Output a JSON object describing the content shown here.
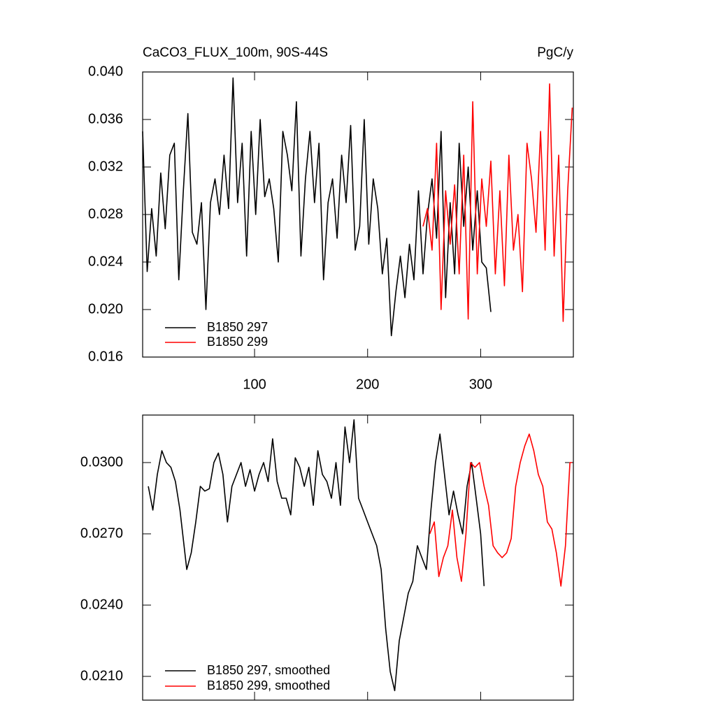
{
  "chart_data": [
    {
      "type": "line",
      "title": "CaCO3_FLUX_100m, 90S-44S",
      "units": "PgC/y",
      "xlim": [
        1,
        382
      ],
      "xticks": [
        100,
        200,
        300
      ],
      "show_xtick_labels": true,
      "ylim": [
        0.016,
        0.04
      ],
      "yticks": [
        {
          "value": 0.016,
          "label": "0.016"
        },
        {
          "value": 0.02,
          "label": "0.020"
        },
        {
          "value": 0.024,
          "label": "0.024"
        },
        {
          "value": 0.028,
          "label": "0.028"
        },
        {
          "value": 0.032,
          "label": "0.032"
        },
        {
          "value": 0.036,
          "label": "0.036"
        },
        {
          "value": 0.04,
          "label": "0.040"
        }
      ],
      "series": [
        {
          "name": "B1850 297",
          "color": "#000000",
          "x": [
            1,
            5,
            9,
            13,
            17,
            21,
            25,
            29,
            33,
            37,
            41,
            45,
            49,
            53,
            57,
            61,
            65,
            69,
            73,
            77,
            81,
            85,
            89,
            93,
            97,
            101,
            105,
            109,
            113,
            117,
            121,
            125,
            129,
            133,
            137,
            141,
            145,
            149,
            153,
            157,
            161,
            165,
            169,
            173,
            177,
            181,
            185,
            189,
            193,
            197,
            201,
            205,
            209,
            213,
            217,
            221,
            225,
            229,
            233,
            237,
            241,
            245,
            249,
            253,
            257,
            261,
            265,
            269,
            273,
            277,
            281,
            285,
            289,
            293,
            297,
            301,
            305,
            309
          ],
          "values": [
            0.035,
            0.0232,
            0.0285,
            0.0245,
            0.0315,
            0.0268,
            0.033,
            0.034,
            0.0225,
            0.03,
            0.0365,
            0.0265,
            0.0255,
            0.029,
            0.02,
            0.029,
            0.031,
            0.028,
            0.033,
            0.0285,
            0.0395,
            0.029,
            0.034,
            0.0245,
            0.035,
            0.028,
            0.036,
            0.0295,
            0.031,
            0.0285,
            0.024,
            0.035,
            0.033,
            0.03,
            0.0375,
            0.0245,
            0.031,
            0.035,
            0.029,
            0.034,
            0.0225,
            0.029,
            0.031,
            0.026,
            0.033,
            0.029,
            0.0355,
            0.025,
            0.027,
            0.036,
            0.0255,
            0.031,
            0.0285,
            0.023,
            0.026,
            0.0178,
            0.0215,
            0.0245,
            0.021,
            0.0255,
            0.0225,
            0.03,
            0.023,
            0.028,
            0.031,
            0.026,
            0.035,
            0.021,
            0.029,
            0.023,
            0.034,
            0.027,
            0.032,
            0.025,
            0.03,
            0.024,
            0.0235,
            0.0198
          ]
        },
        {
          "name": "B1850 299",
          "color": "#ff0000",
          "x": [
            249,
            253,
            257,
            261,
            265,
            269,
            273,
            277,
            281,
            285,
            289,
            293,
            297,
            301,
            305,
            309,
            313,
            317,
            321,
            325,
            329,
            333,
            337,
            341,
            345,
            349,
            353,
            357,
            361,
            365,
            369,
            373,
            377,
            381
          ],
          "values": [
            0.027,
            0.0285,
            0.025,
            0.034,
            0.02,
            0.03,
            0.0255,
            0.0305,
            0.023,
            0.033,
            0.0192,
            0.0375,
            0.023,
            0.031,
            0.027,
            0.0325,
            0.023,
            0.03,
            0.022,
            0.033,
            0.025,
            0.028,
            0.0215,
            0.034,
            0.031,
            0.0265,
            0.035,
            0.025,
            0.039,
            0.0245,
            0.033,
            0.019,
            0.03,
            0.037
          ]
        }
      ]
    },
    {
      "type": "line",
      "xlim": [
        1,
        382
      ],
      "xticks": [
        100,
        200,
        300
      ],
      "show_xtick_labels": false,
      "ylim": [
        0.02,
        0.032
      ],
      "yticks": [
        {
          "value": 0.021,
          "label": "0.0210"
        },
        {
          "value": 0.024,
          "label": "0.0240"
        },
        {
          "value": 0.027,
          "label": "0.0270"
        },
        {
          "value": 0.03,
          "label": "0.0300"
        }
      ],
      "series": [
        {
          "name": "B1850 297, smoothed",
          "color": "#000000",
          "x": [
            6,
            10,
            14,
            18,
            22,
            26,
            30,
            34,
            40,
            44,
            48,
            52,
            56,
            60,
            64,
            68,
            72,
            76,
            80,
            84,
            88,
            92,
            96,
            100,
            104,
            108,
            112,
            116,
            120,
            124,
            128,
            132,
            136,
            140,
            144,
            148,
            152,
            156,
            160,
            164,
            168,
            172,
            176,
            180,
            184,
            188,
            192,
            196,
            200,
            204,
            208,
            212,
            216,
            220,
            224,
            228,
            232,
            236,
            240,
            244,
            248,
            252,
            256,
            260,
            264,
            268,
            272,
            276,
            280,
            284,
            288,
            292,
            296,
            300,
            303
          ],
          "values": [
            0.029,
            0.028,
            0.0295,
            0.0305,
            0.03,
            0.0298,
            0.0292,
            0.028,
            0.0255,
            0.0262,
            0.0275,
            0.029,
            0.0288,
            0.0289,
            0.03,
            0.0304,
            0.0295,
            0.0275,
            0.029,
            0.0295,
            0.03,
            0.029,
            0.0297,
            0.0288,
            0.0295,
            0.03,
            0.0292,
            0.031,
            0.0292,
            0.0285,
            0.0285,
            0.0278,
            0.0302,
            0.0298,
            0.029,
            0.0298,
            0.0282,
            0.0305,
            0.0295,
            0.0292,
            0.0285,
            0.03,
            0.0282,
            0.0315,
            0.03,
            0.0318,
            0.0285,
            0.028,
            0.0275,
            0.027,
            0.0265,
            0.0255,
            0.023,
            0.0212,
            0.0204,
            0.0225,
            0.0235,
            0.0245,
            0.025,
            0.0265,
            0.026,
            0.0255,
            0.028,
            0.03,
            0.0312,
            0.0295,
            0.0278,
            0.0288,
            0.0278,
            0.027,
            0.029,
            0.03,
            0.0285,
            0.027,
            0.0248
          ]
        },
        {
          "name": "B1850 299, smoothed",
          "color": "#ff0000",
          "x": [
            255,
            259,
            263,
            267,
            271,
            275,
            279,
            283,
            287,
            291,
            295,
            299,
            303,
            307,
            311,
            315,
            319,
            323,
            327,
            331,
            335,
            339,
            343,
            347,
            351,
            355,
            359,
            363,
            367,
            371,
            375,
            379,
            381
          ],
          "values": [
            0.027,
            0.0275,
            0.0252,
            0.026,
            0.0265,
            0.028,
            0.026,
            0.025,
            0.027,
            0.03,
            0.0298,
            0.03,
            0.029,
            0.0282,
            0.0265,
            0.0262,
            0.026,
            0.0262,
            0.0268,
            0.029,
            0.03,
            0.0307,
            0.0312,
            0.0305,
            0.0295,
            0.029,
            0.0275,
            0.0272,
            0.0262,
            0.0248,
            0.0265,
            0.03,
            0.03
          ]
        }
      ]
    }
  ]
}
